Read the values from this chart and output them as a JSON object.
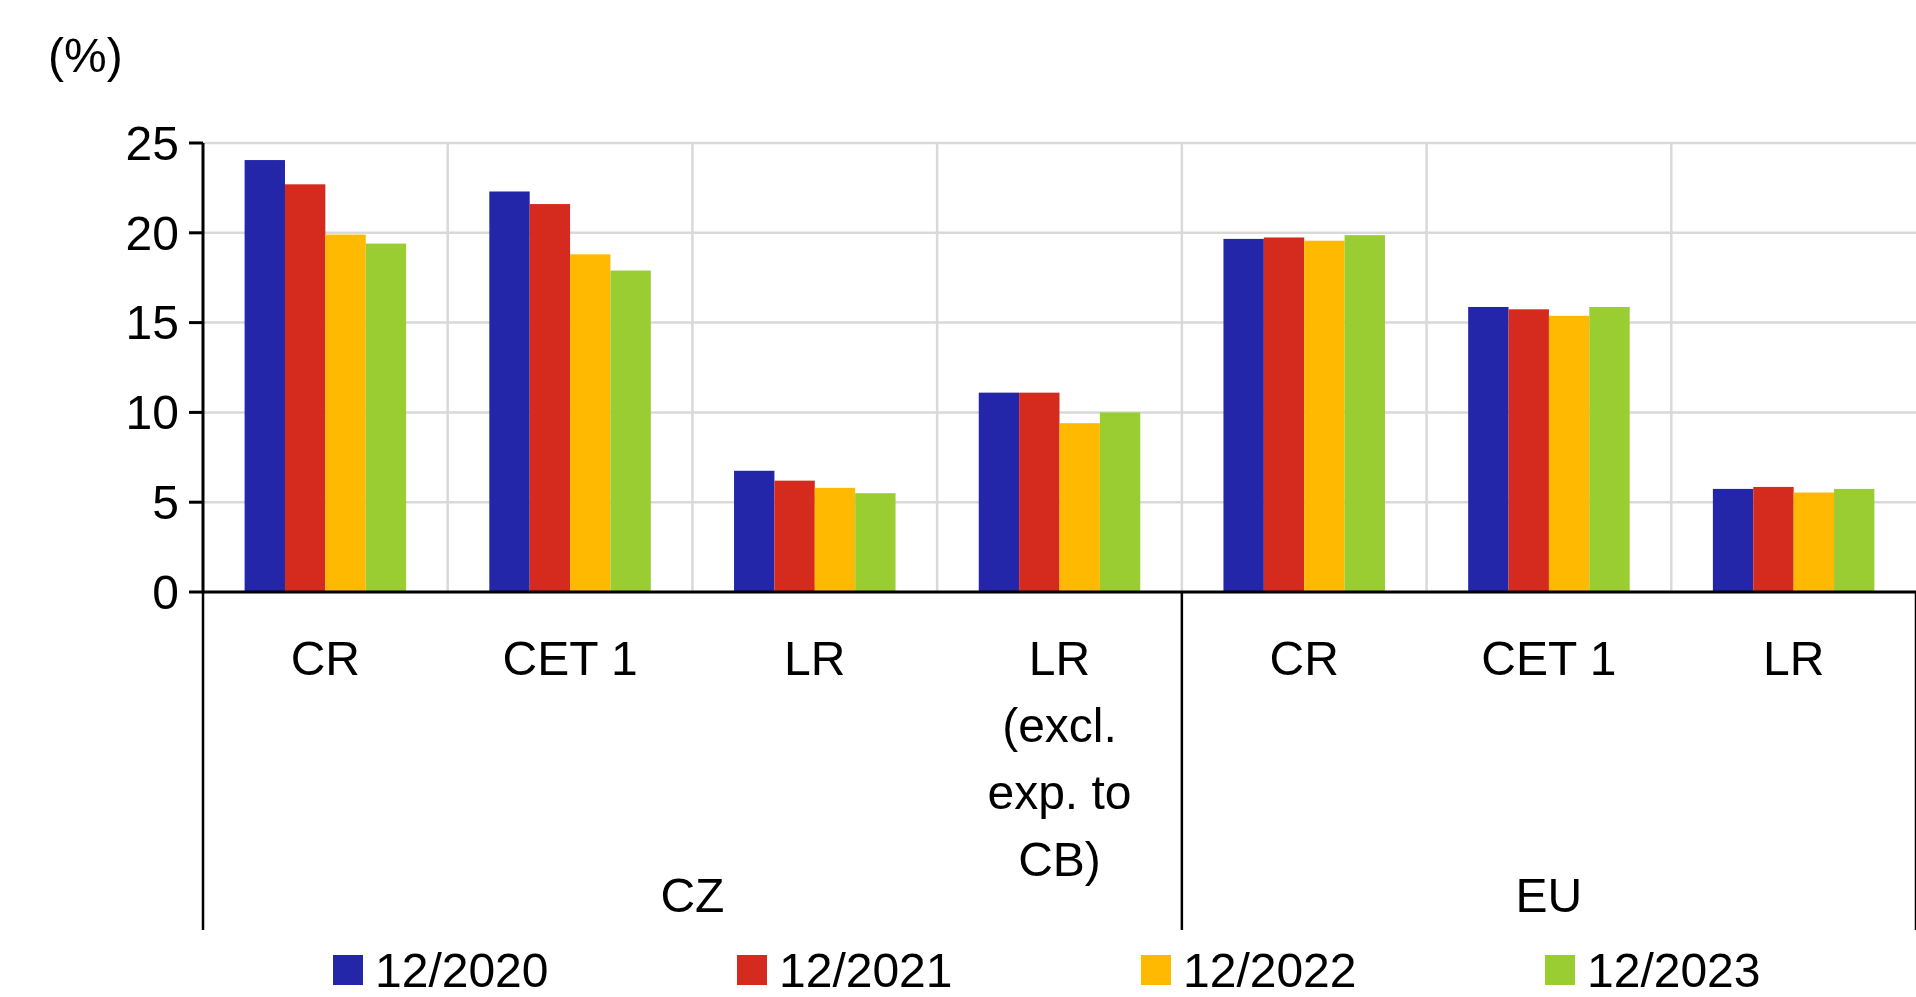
{
  "chart_data": {
    "type": "bar",
    "ylabel": "(%)",
    "categories": [
      "CR",
      "CET 1",
      "LR",
      "LR (excl. exp. to CB)",
      "CR",
      "CET 1",
      "LR"
    ],
    "series": [
      {
        "name": "12/2020",
        "color": "#2326a8",
        "values": [
          24.05,
          22.3,
          6.75,
          11.1,
          19.66,
          15.87,
          5.74
        ]
      },
      {
        "name": "12/2021",
        "color": "#d52b1e",
        "values": [
          22.7,
          21.6,
          6.2,
          11.1,
          19.74,
          15.74,
          5.85
        ]
      },
      {
        "name": "12/2022",
        "color": "#ffb900",
        "values": [
          19.9,
          18.8,
          5.8,
          9.4,
          19.56,
          15.38,
          5.54
        ]
      },
      {
        "name": "12/2023",
        "color": "#9acd32",
        "values": [
          19.4,
          17.9,
          5.5,
          10.0,
          19.87,
          15.87,
          5.74
        ]
      }
    ],
    "ylim": [
      0,
      25
    ],
    "yticks": [
      0,
      5,
      10,
      15,
      20,
      25
    ],
    "grid": true,
    "legend": "bottom",
    "annotations": [
      "CZ",
      "EU"
    ]
  }
}
